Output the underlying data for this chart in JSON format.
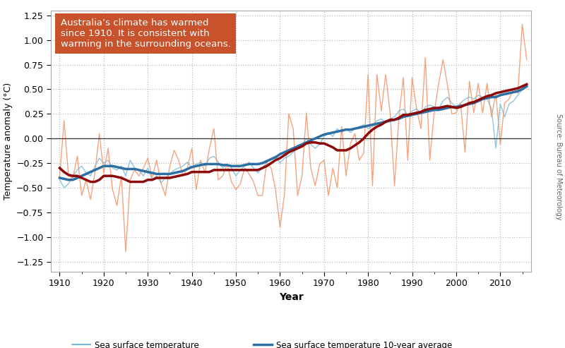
{
  "xlabel": "Year",
  "ylabel": "Temperature anomaly (°C)",
  "annotation_text": "Australia’s climate has warmed\nsince 1910. It is consistent with\nwarming in the surrounding oceans.",
  "annotation_bg": "#c8522b",
  "annotation_text_color": "#ffffff",
  "xlim": [
    1908,
    2017
  ],
  "ylim": [
    -1.35,
    1.3
  ],
  "yticks": [
    -1.25,
    -1.0,
    -0.75,
    -0.5,
    -0.25,
    0.0,
    0.25,
    0.5,
    0.75,
    1.0,
    1.25
  ],
  "xticks": [
    1910,
    1920,
    1930,
    1940,
    1950,
    1960,
    1970,
    1980,
    1990,
    2000,
    2010
  ],
  "source_text": "Source: Bureau of Meteorology",
  "bg_color": "#ffffff",
  "grid_color": "#bbbbbb",
  "zero_line_color": "#333333",
  "sea_color": "#7bbcdc",
  "sea_avg_color": "#2e6fa3",
  "air_color": "#f0956a",
  "air_avg_color": "#8b0a0a",
  "sea_surface_years": [
    1910,
    1911,
    1912,
    1913,
    1914,
    1915,
    1916,
    1917,
    1918,
    1919,
    1920,
    1921,
    1922,
    1923,
    1924,
    1925,
    1926,
    1927,
    1928,
    1929,
    1930,
    1931,
    1932,
    1933,
    1934,
    1935,
    1936,
    1937,
    1938,
    1939,
    1940,
    1941,
    1942,
    1943,
    1944,
    1945,
    1946,
    1947,
    1948,
    1949,
    1950,
    1951,
    1952,
    1953,
    1954,
    1955,
    1956,
    1957,
    1958,
    1959,
    1960,
    1961,
    1962,
    1963,
    1964,
    1965,
    1966,
    1967,
    1968,
    1969,
    1970,
    1971,
    1972,
    1973,
    1974,
    1975,
    1976,
    1977,
    1978,
    1979,
    1980,
    1981,
    1982,
    1983,
    1984,
    1985,
    1986,
    1987,
    1988,
    1989,
    1990,
    1991,
    1992,
    1993,
    1994,
    1995,
    1996,
    1997,
    1998,
    1999,
    2000,
    2001,
    2002,
    2003,
    2004,
    2005,
    2006,
    2007,
    2008,
    2009,
    2010,
    2011,
    2012,
    2013,
    2014,
    2015,
    2016
  ],
  "sea_surface_vals": [
    -0.42,
    -0.5,
    -0.46,
    -0.38,
    -0.32,
    -0.28,
    -0.35,
    -0.38,
    -0.28,
    -0.2,
    -0.25,
    -0.22,
    -0.3,
    -0.32,
    -0.28,
    -0.38,
    -0.22,
    -0.3,
    -0.32,
    -0.38,
    -0.3,
    -0.42,
    -0.38,
    -0.45,
    -0.4,
    -0.36,
    -0.32,
    -0.3,
    -0.28,
    -0.24,
    -0.3,
    -0.26,
    -0.24,
    -0.28,
    -0.2,
    -0.18,
    -0.24,
    -0.3,
    -0.26,
    -0.3,
    -0.38,
    -0.32,
    -0.28,
    -0.24,
    -0.3,
    -0.35,
    -0.3,
    -0.24,
    -0.2,
    -0.18,
    -0.25,
    -0.2,
    -0.18,
    -0.14,
    -0.1,
    -0.06,
    0.0,
    -0.06,
    -0.1,
    -0.06,
    0.02,
    0.06,
    0.02,
    0.1,
    0.06,
    0.1,
    0.06,
    0.1,
    0.12,
    0.14,
    0.1,
    0.12,
    0.18,
    0.2,
    0.16,
    0.2,
    0.22,
    0.28,
    0.3,
    0.24,
    0.28,
    0.3,
    0.26,
    0.32,
    0.34,
    0.32,
    0.3,
    0.38,
    0.42,
    0.36,
    0.32,
    0.36,
    0.4,
    0.42,
    0.4,
    0.44,
    0.42,
    0.4,
    0.3,
    -0.1,
    0.35,
    0.22,
    0.35,
    0.38,
    0.44,
    0.5,
    0.55
  ],
  "sea_10yr_vals": [
    -0.4,
    -0.41,
    -0.42,
    -0.42,
    -0.4,
    -0.38,
    -0.36,
    -0.34,
    -0.32,
    -0.3,
    -0.28,
    -0.28,
    -0.28,
    -0.29,
    -0.3,
    -0.31,
    -0.31,
    -0.31,
    -0.32,
    -0.33,
    -0.34,
    -0.35,
    -0.36,
    -0.36,
    -0.36,
    -0.36,
    -0.35,
    -0.34,
    -0.33,
    -0.31,
    -0.29,
    -0.28,
    -0.27,
    -0.26,
    -0.26,
    -0.26,
    -0.26,
    -0.27,
    -0.27,
    -0.28,
    -0.28,
    -0.28,
    -0.27,
    -0.26,
    -0.26,
    -0.26,
    -0.25,
    -0.23,
    -0.21,
    -0.19,
    -0.16,
    -0.14,
    -0.12,
    -0.1,
    -0.08,
    -0.06,
    -0.04,
    -0.02,
    0.0,
    0.02,
    0.04,
    0.05,
    0.06,
    0.07,
    0.08,
    0.09,
    0.09,
    0.1,
    0.11,
    0.12,
    0.13,
    0.14,
    0.15,
    0.16,
    0.17,
    0.18,
    0.19,
    0.2,
    0.22,
    0.23,
    0.24,
    0.25,
    0.26,
    0.27,
    0.28,
    0.29,
    0.29,
    0.3,
    0.31,
    0.32,
    0.32,
    0.33,
    0.34,
    0.35,
    0.36,
    0.38,
    0.4,
    0.41,
    0.42,
    0.42,
    0.44,
    0.45,
    0.46,
    0.47,
    0.48,
    0.5,
    0.53
  ],
  "air_years": [
    1910,
    1911,
    1912,
    1913,
    1914,
    1915,
    1916,
    1917,
    1918,
    1919,
    1920,
    1921,
    1922,
    1923,
    1924,
    1925,
    1926,
    1927,
    1928,
    1929,
    1930,
    1931,
    1932,
    1933,
    1934,
    1935,
    1936,
    1937,
    1938,
    1939,
    1940,
    1941,
    1942,
    1943,
    1944,
    1945,
    1946,
    1947,
    1948,
    1949,
    1950,
    1951,
    1952,
    1953,
    1954,
    1955,
    1956,
    1957,
    1958,
    1959,
    1960,
    1961,
    1962,
    1963,
    1964,
    1965,
    1966,
    1967,
    1968,
    1969,
    1970,
    1971,
    1972,
    1973,
    1974,
    1975,
    1976,
    1977,
    1978,
    1979,
    1980,
    1981,
    1982,
    1983,
    1984,
    1985,
    1986,
    1987,
    1988,
    1989,
    1990,
    1991,
    1992,
    1993,
    1994,
    1995,
    1996,
    1997,
    1998,
    1999,
    2000,
    2001,
    2002,
    2003,
    2004,
    2005,
    2006,
    2007,
    2008,
    2009,
    2010,
    2011,
    2012,
    2013,
    2014,
    2015,
    2016
  ],
  "air_vals": [
    -0.38,
    0.18,
    -0.38,
    -0.4,
    -0.18,
    -0.58,
    -0.42,
    -0.62,
    -0.35,
    0.05,
    -0.35,
    -0.1,
    -0.52,
    -0.68,
    -0.38,
    -1.15,
    -0.42,
    -0.32,
    -0.38,
    -0.3,
    -0.2,
    -0.4,
    -0.22,
    -0.45,
    -0.58,
    -0.28,
    -0.12,
    -0.22,
    -0.38,
    -0.3,
    -0.1,
    -0.52,
    -0.22,
    -0.35,
    -0.1,
    0.1,
    -0.42,
    -0.38,
    -0.26,
    -0.44,
    -0.52,
    -0.46,
    -0.3,
    -0.36,
    -0.44,
    -0.58,
    -0.58,
    -0.24,
    -0.3,
    -0.52,
    -0.9,
    -0.58,
    0.25,
    0.1,
    -0.58,
    -0.38,
    0.26,
    -0.3,
    -0.48,
    -0.26,
    -0.22,
    -0.58,
    -0.3,
    -0.5,
    0.12,
    -0.38,
    -0.05,
    0.05,
    -0.22,
    -0.15,
    0.65,
    -0.48,
    0.65,
    0.28,
    0.65,
    0.26,
    -0.48,
    0.22,
    0.62,
    -0.22,
    0.62,
    0.3,
    0.1,
    0.82,
    -0.22,
    0.26,
    0.55,
    0.8,
    0.55,
    0.25,
    0.26,
    0.36,
    -0.14,
    0.58,
    0.26,
    0.56,
    0.26,
    0.56,
    0.22,
    0.46,
    -0.06,
    0.36,
    0.4,
    0.5,
    0.46,
    1.16,
    0.8
  ],
  "air_10yr_vals": [
    -0.3,
    -0.34,
    -0.37,
    -0.38,
    -0.38,
    -0.4,
    -0.42,
    -0.44,
    -0.44,
    -0.42,
    -0.38,
    -0.38,
    -0.38,
    -0.39,
    -0.4,
    -0.42,
    -0.44,
    -0.44,
    -0.44,
    -0.44,
    -0.42,
    -0.42,
    -0.4,
    -0.4,
    -0.4,
    -0.4,
    -0.39,
    -0.38,
    -0.37,
    -0.36,
    -0.34,
    -0.34,
    -0.34,
    -0.34,
    -0.34,
    -0.32,
    -0.32,
    -0.32,
    -0.32,
    -0.32,
    -0.32,
    -0.32,
    -0.32,
    -0.32,
    -0.32,
    -0.32,
    -0.3,
    -0.28,
    -0.25,
    -0.22,
    -0.2,
    -0.17,
    -0.14,
    -0.12,
    -0.1,
    -0.08,
    -0.05,
    -0.04,
    -0.04,
    -0.05,
    -0.05,
    -0.07,
    -0.09,
    -0.12,
    -0.12,
    -0.12,
    -0.1,
    -0.07,
    -0.04,
    0.0,
    0.05,
    0.09,
    0.12,
    0.14,
    0.17,
    0.19,
    0.19,
    0.21,
    0.24,
    0.24,
    0.25,
    0.26,
    0.27,
    0.29,
    0.3,
    0.31,
    0.31,
    0.32,
    0.33,
    0.32,
    0.31,
    0.32,
    0.34,
    0.36,
    0.37,
    0.39,
    0.41,
    0.43,
    0.44,
    0.46,
    0.47,
    0.48,
    0.49,
    0.5,
    0.51,
    0.53,
    0.55
  ]
}
